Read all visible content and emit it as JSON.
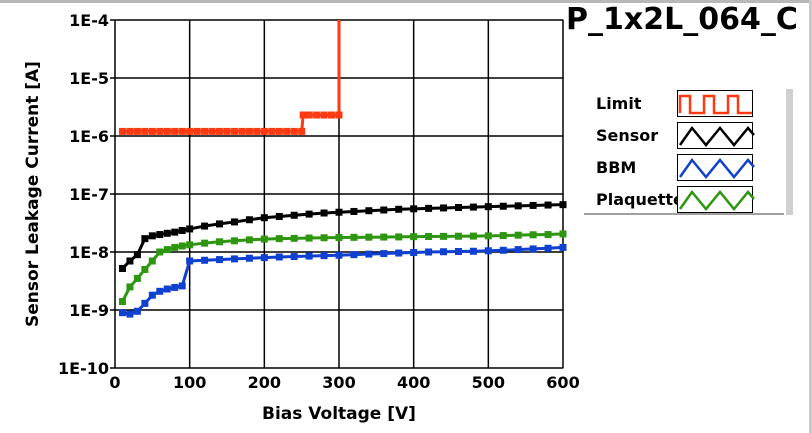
{
  "title": "P_1x2L_064_C",
  "chart_data": {
    "type": "line",
    "title": "P_1x2L_064_C",
    "xlabel": "Bias Voltage [V]",
    "ylabel": "Sensor Leakage Current [A]",
    "xlim": [
      0,
      600
    ],
    "ylim": [
      1e-10,
      0.0001
    ],
    "yscale": "log",
    "grid": true,
    "legend_position": "right",
    "xticks": [
      "0",
      "100",
      "200",
      "300",
      "400",
      "500",
      "600"
    ],
    "xtick_values": [
      0,
      100,
      200,
      300,
      400,
      500,
      600
    ],
    "yticks": [
      "1E-4",
      "1E-5",
      "1E-6",
      "1E-7",
      "1E-8",
      "1E-9",
      "1E-10"
    ],
    "ytick_values": [
      0.0001,
      1e-05,
      1e-06,
      1e-07,
      1e-08,
      1e-09,
      1e-10
    ],
    "series": [
      {
        "name": "Limit",
        "color": "#ff3a10",
        "legend_style": "step",
        "x": [
          10,
          20,
          30,
          40,
          50,
          60,
          70,
          80,
          90,
          100,
          110,
          120,
          130,
          140,
          150,
          160,
          170,
          180,
          190,
          200,
          210,
          220,
          230,
          240,
          250,
          252,
          260,
          270,
          280,
          290,
          300,
          300
        ],
        "y": [
          1.2e-06,
          1.2e-06,
          1.2e-06,
          1.2e-06,
          1.2e-06,
          1.2e-06,
          1.2e-06,
          1.2e-06,
          1.2e-06,
          1.2e-06,
          1.2e-06,
          1.2e-06,
          1.2e-06,
          1.2e-06,
          1.2e-06,
          1.2e-06,
          1.2e-06,
          1.2e-06,
          1.2e-06,
          1.2e-06,
          1.2e-06,
          1.2e-06,
          1.2e-06,
          1.2e-06,
          1.2e-06,
          2.3e-06,
          2.3e-06,
          2.3e-06,
          2.3e-06,
          2.3e-06,
          2.3e-06,
          0.0001
        ]
      },
      {
        "name": "Sensor",
        "color": "#000000",
        "legend_style": "zigzag",
        "x": [
          10,
          20,
          30,
          40,
          50,
          60,
          70,
          80,
          90,
          100,
          120,
          140,
          160,
          180,
          200,
          220,
          240,
          260,
          280,
          300,
          320,
          340,
          360,
          380,
          400,
          420,
          440,
          460,
          480,
          500,
          520,
          540,
          560,
          580,
          600
        ],
        "y": [
          5.2e-09,
          7e-09,
          9e-09,
          1.7e-08,
          1.9e-08,
          2e-08,
          2.1e-08,
          2.2e-08,
          2.35e-08,
          2.5e-08,
          2.8e-08,
          3.05e-08,
          3.3e-08,
          3.6e-08,
          3.9e-08,
          4.1e-08,
          4.3e-08,
          4.5e-08,
          4.7e-08,
          4.85e-08,
          5e-08,
          5.15e-08,
          5.3e-08,
          5.45e-08,
          5.55e-08,
          5.65e-08,
          5.75e-08,
          5.85e-08,
          5.95e-08,
          6.05e-08,
          6.15e-08,
          6.25e-08,
          6.35e-08,
          6.45e-08,
          6.55e-08
        ]
      },
      {
        "name": "BBM",
        "color": "#1040d0",
        "legend_style": "zigzag",
        "x": [
          10,
          20,
          30,
          40,
          50,
          60,
          70,
          80,
          90,
          100,
          120,
          140,
          160,
          180,
          200,
          220,
          240,
          260,
          280,
          300,
          320,
          340,
          360,
          380,
          400,
          420,
          440,
          460,
          480,
          500,
          520,
          540,
          560,
          580,
          600
        ],
        "y": [
          9e-10,
          8.5e-10,
          9.5e-10,
          1.3e-09,
          1.8e-09,
          2.1e-09,
          2.3e-09,
          2.45e-09,
          2.6e-09,
          7e-09,
          7.2e-09,
          7.4e-09,
          7.6e-09,
          7.8e-09,
          8e-09,
          8.2e-09,
          8.35e-09,
          8.5e-09,
          8.65e-09,
          8.8e-09,
          9e-09,
          9.2e-09,
          9.4e-09,
          9.6e-09,
          9.8e-09,
          1e-08,
          1.01e-08,
          1.02e-08,
          1.03e-08,
          1.05e-08,
          1.07e-08,
          1.1e-08,
          1.13e-08,
          1.16e-08,
          1.2e-08
        ]
      },
      {
        "name": "Plaquette",
        "color": "#2e9610",
        "legend_style": "zigzag",
        "x": [
          10,
          20,
          30,
          40,
          50,
          60,
          70,
          80,
          90,
          100,
          120,
          140,
          160,
          180,
          200,
          220,
          240,
          260,
          280,
          300,
          320,
          340,
          360,
          380,
          400,
          420,
          440,
          460,
          480,
          500,
          520,
          540,
          560,
          580,
          600
        ],
        "y": [
          1.4e-09,
          2.5e-09,
          3.5e-09,
          5e-09,
          7e-09,
          1e-08,
          1.1e-08,
          1.2e-08,
          1.27e-08,
          1.33e-08,
          1.42e-08,
          1.5e-08,
          1.56e-08,
          1.62e-08,
          1.67e-08,
          1.7e-08,
          1.72e-08,
          1.74e-08,
          1.76e-08,
          1.78e-08,
          1.79e-08,
          1.8e-08,
          1.81e-08,
          1.82e-08,
          1.84e-08,
          1.85e-08,
          1.86e-08,
          1.87e-08,
          1.88e-08,
          1.9e-08,
          1.92e-08,
          1.95e-08,
          1.98e-08,
          2e-08,
          2.05e-08
        ]
      }
    ]
  }
}
